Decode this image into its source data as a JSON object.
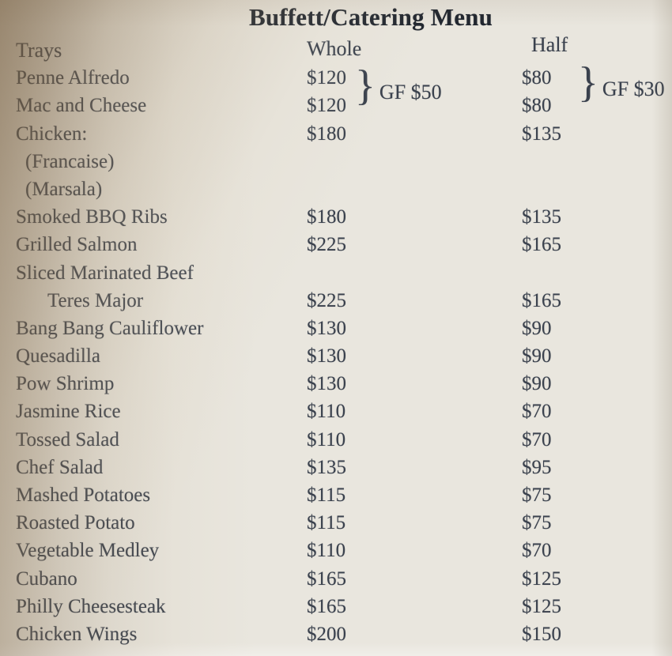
{
  "title": "Buffett/Catering Menu",
  "header": {
    "trays": "Trays",
    "whole": "Whole",
    "half": "Half"
  },
  "items": [
    {
      "name": "Penne Alfredo",
      "whole": "$120",
      "half": "$80",
      "indent": 0
    },
    {
      "name": "Mac and Cheese",
      "whole": "$120",
      "half": "$80",
      "indent": 0
    },
    {
      "name": "Chicken:",
      "whole": "$180",
      "half": "$135",
      "indent": 0
    },
    {
      "name": "(Francaise)",
      "whole": "",
      "half": "",
      "indent": 1
    },
    {
      "name": "(Marsala)",
      "whole": "",
      "half": "",
      "indent": 1
    },
    {
      "name": "Smoked BBQ Ribs",
      "whole": "$180",
      "half": "$135",
      "indent": 0
    },
    {
      "name": "Grilled Salmon",
      "whole": "$225",
      "half": "$165",
      "indent": 0
    },
    {
      "name": "Sliced Marinated Beef",
      "whole": "",
      "half": "",
      "indent": 0
    },
    {
      "name": "Teres Major",
      "whole": "$225",
      "half": "$165",
      "indent": 2
    },
    {
      "name": "Bang Bang Cauliflower",
      "whole": "$130",
      "half": "$90",
      "indent": 0
    },
    {
      "name": "Quesadilla",
      "whole": "$130",
      "half": "$90",
      "indent": 0
    },
    {
      "name": "Pow Shrimp",
      "whole": "$130",
      "half": "$90",
      "indent": 0
    },
    {
      "name": "Jasmine Rice",
      "whole": "$110",
      "half": "$70",
      "indent": 0
    },
    {
      "name": "Tossed Salad",
      "whole": "$110",
      "half": "$70",
      "indent": 0
    },
    {
      "name": "Chef Salad",
      "whole": "$135",
      "half": "$95",
      "indent": 0
    },
    {
      "name": "Mashed Potatoes",
      "whole": "$115",
      "half": "$75",
      "indent": 0
    },
    {
      "name": "Roasted Potato",
      "whole": "$115",
      "half": "$75",
      "indent": 0
    },
    {
      "name": "Vegetable Medley",
      "whole": "$110",
      "half": "$70",
      "indent": 0
    },
    {
      "name": "Cubano",
      "whole": "$165",
      "half": "$125",
      "indent": 0
    },
    {
      "name": "Philly Cheesesteak",
      "whole": "$165",
      "half": "$125",
      "indent": 0
    },
    {
      "name": "Chicken Wings",
      "whole": "$200",
      "half": "$150",
      "indent": 0
    }
  ],
  "gf": {
    "whole": {
      "brace": "}",
      "label": "GF $50"
    },
    "half": {
      "brace": "}",
      "label": "GF $30"
    }
  },
  "colors": {
    "paper": "#e9e6de",
    "ink": "#3a414d",
    "title_ink": "#20262f",
    "shadow_brown": "#8a7459"
  }
}
